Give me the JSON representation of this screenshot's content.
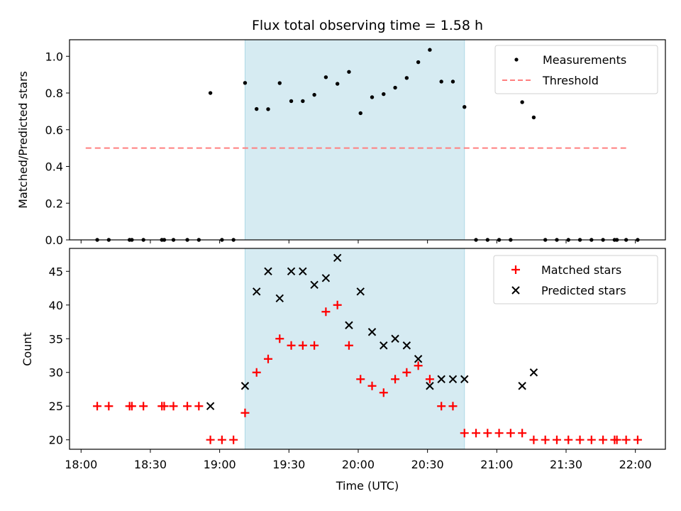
{
  "chart_data": [
    {
      "type": "scatter",
      "title": "Flux total observing time = 1.58 h",
      "ylabel": "Matched/Predicted stars",
      "xlabel": "",
      "xlim_minutes": [
        1075,
        1333
      ],
      "ylim": [
        0,
        1.09
      ],
      "yticks": [
        "0.0",
        "0.2",
        "0.4",
        "0.6",
        "0.8",
        "1.0"
      ],
      "ytick_values": [
        0,
        0.2,
        0.4,
        0.6,
        0.8,
        1.0
      ],
      "legend": {
        "position": "top-right",
        "entries": [
          "Measurements",
          "Threshold"
        ]
      },
      "series": [
        {
          "name": "Measurements",
          "color": "#000000",
          "marker": "dot",
          "x": [
            "18:07",
            "18:12",
            "18:21",
            "18:22",
            "18:27",
            "18:35",
            "18:36",
            "18:40",
            "18:46",
            "18:51",
            "18:56",
            "19:01",
            "19:06",
            "19:11",
            "19:16",
            "19:21",
            "19:26",
            "19:31",
            "19:36",
            "19:41",
            "19:46",
            "19:51",
            "19:56",
            "20:01",
            "20:06",
            "20:11",
            "20:16",
            "20:21",
            "20:26",
            "20:31",
            "20:36",
            "20:41",
            "20:46",
            "20:51",
            "20:56",
            "21:01",
            "21:06",
            "21:11",
            "21:16",
            "21:21",
            "21:26",
            "21:31",
            "21:36",
            "21:41",
            "21:46",
            "21:51",
            "21:52",
            "21:56",
            "22:01"
          ],
          "x_min": [
            1087,
            1092,
            1101,
            1102,
            1107,
            1115,
            1116,
            1120,
            1126,
            1131,
            1136,
            1141,
            1146,
            1151,
            1156,
            1161,
            1166,
            1171,
            1176,
            1181,
            1186,
            1191,
            1196,
            1201,
            1206,
            1211,
            1216,
            1221,
            1226,
            1231,
            1236,
            1241,
            1246,
            1251,
            1256,
            1261,
            1266,
            1271,
            1276,
            1281,
            1286,
            1291,
            1296,
            1301,
            1306,
            1311,
            1312,
            1316,
            1321
          ],
          "y": [
            0,
            0,
            0,
            0,
            0,
            0,
            0,
            0,
            0,
            0,
            0.8,
            0,
            0,
            0.855,
            0.713,
            0.712,
            0.854,
            0.756,
            0.756,
            0.79,
            0.886,
            0.85,
            0.915,
            0.69,
            0.777,
            0.794,
            0.829,
            0.882,
            0.968,
            1.035,
            0.862,
            0.862,
            0.724,
            0,
            0,
            0,
            0,
            0.75,
            0.667,
            0,
            0,
            0,
            0,
            0,
            0,
            0,
            0,
            0,
            0
          ]
        },
        {
          "name": "Threshold",
          "color": "#ff7f7f",
          "style": "dashed",
          "x_min": [
            1082,
            1316
          ],
          "y": [
            0.5,
            0.5
          ]
        }
      ],
      "shaded_region_minutes": [
        1151,
        1246
      ],
      "shade_color": "#add8e6"
    },
    {
      "type": "scatter",
      "ylabel": "Count",
      "xlabel": "Time (UTC)",
      "xlim_minutes": [
        1075,
        1333
      ],
      "ylim": [
        18.6,
        48.4
      ],
      "yticks": [
        "20",
        "25",
        "30",
        "35",
        "40",
        "45"
      ],
      "ytick_values": [
        20,
        25,
        30,
        35,
        40,
        45
      ],
      "xticks": [
        "18:00",
        "18:30",
        "19:00",
        "19:30",
        "20:00",
        "20:30",
        "21:00",
        "21:30",
        "22:00"
      ],
      "xtick_values": [
        1080,
        1110,
        1140,
        1170,
        1200,
        1230,
        1260,
        1290,
        1320
      ],
      "legend": {
        "position": "top-right",
        "entries": [
          "Matched stars",
          "Predicted stars"
        ]
      },
      "series": [
        {
          "name": "Matched stars",
          "color": "#ff0000",
          "marker": "plus",
          "x_min": [
            1087,
            1092,
            1101,
            1102,
            1107,
            1115,
            1116,
            1120,
            1126,
            1131,
            1136,
            1141,
            1146,
            1151,
            1156,
            1161,
            1166,
            1171,
            1176,
            1181,
            1186,
            1191,
            1196,
            1201,
            1206,
            1211,
            1216,
            1221,
            1226,
            1231,
            1236,
            1241,
            1246,
            1251,
            1256,
            1261,
            1266,
            1271,
            1276,
            1281,
            1286,
            1291,
            1296,
            1301,
            1306,
            1311,
            1312,
            1316,
            1321
          ],
          "y": [
            25,
            25,
            25,
            25,
            25,
            25,
            25,
            25,
            25,
            25,
            20,
            20,
            20,
            24,
            30,
            32,
            35,
            34,
            34,
            34,
            39,
            40,
            34,
            29,
            28,
            27,
            29,
            30,
            31,
            29,
            25,
            25,
            21,
            21,
            21,
            21,
            21,
            21,
            20,
            20,
            20,
            20,
            20,
            20,
            20,
            20,
            20,
            20,
            20
          ]
        },
        {
          "name": "Predicted stars",
          "color": "#000000",
          "marker": "x",
          "x_min": [
            1136,
            1151,
            1156,
            1161,
            1166,
            1171,
            1176,
            1181,
            1186,
            1191,
            1196,
            1201,
            1206,
            1211,
            1216,
            1221,
            1226,
            1231,
            1236,
            1241,
            1246,
            1271,
            1276
          ],
          "y": [
            25,
            28,
            42,
            45,
            41,
            45,
            45,
            43,
            44,
            47,
            37,
            42,
            36,
            34,
            35,
            34,
            32,
            28,
            29,
            29,
            29,
            28,
            30
          ]
        }
      ],
      "shaded_region_minutes": [
        1151,
        1246
      ],
      "shade_color": "#add8e6"
    }
  ]
}
